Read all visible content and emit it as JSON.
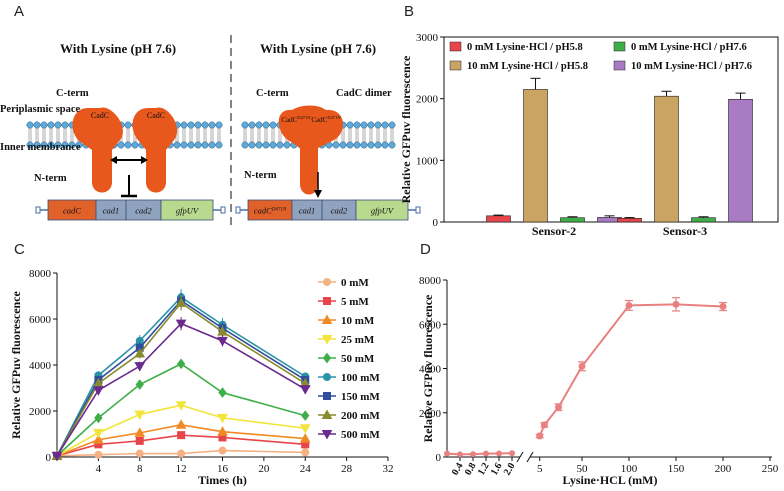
{
  "panels": {
    "A": {
      "letter": "A",
      "left_title": "With Lysine (pH 7.6)",
      "right_title": "With Lysine (pH 7.6)",
      "labels": {
        "cterm_left": "C-term",
        "cterm_right": "C-term",
        "periplasmic": "Periplasmic space",
        "inner": "Inner membrance",
        "nterm_left": "N-term",
        "nterm_right": "N-term",
        "cadc_dimer": "CadC dimer",
        "cadc1": "CadC",
        "cadc2": "CadC",
        "cadc_mut1": "CadC",
        "cadc_mut2": "CadC",
        "mut_sup": "D471N"
      },
      "left_genes": [
        "cadC",
        "cad1",
        "cad2",
        "gfpUV"
      ],
      "right_genes": [
        "cadC",
        "cad1",
        "cad2",
        "gfpUV"
      ],
      "right_gene_sup": "D471N",
      "colors": {
        "protein": "#E8581C",
        "membrane_head": "#5DA9DA",
        "gene_cadC": "#E0612A",
        "gene_cad": "#8FA2BE",
        "gene_gfp": "#B9D98E"
      }
    },
    "B": {
      "letter": "B",
      "chart_data": {
        "type": "bar",
        "ylabel": "Relative GFPuv fluorescence",
        "ylim": [
          0,
          3000
        ],
        "yticks": [
          0,
          1000,
          2000,
          3000
        ],
        "categories": [
          "Sensor-2",
          "Sensor-3"
        ],
        "series": [
          {
            "name": "0 mM Lysine·HCl / pH5.8",
            "color": "#E8454A",
            "values": [
              100,
              60
            ],
            "errors": [
              12,
              12
            ]
          },
          {
            "name": "10 mM Lysine·HCl / pH5.8",
            "color": "#C9A462",
            "values": [
              2150,
              2040
            ],
            "errors": [
              180,
              80
            ]
          },
          {
            "name": "0 mM Lysine·HCl / pH7.6",
            "color": "#3FAE49",
            "values": [
              70,
              70
            ],
            "errors": [
              15,
              15
            ]
          },
          {
            "name": "10 mM Lysine·HCl / pH7.6",
            "color": "#A97BC2",
            "values": [
              75,
              1990
            ],
            "errors": [
              25,
              100
            ]
          }
        ]
      }
    },
    "C": {
      "letter": "C",
      "chart_data": {
        "type": "line",
        "xlabel": "Times (h)",
        "ylabel": "Relative GFPuv fluorescence",
        "x": [
          0,
          4,
          8,
          12,
          16,
          24
        ],
        "xlim": [
          0,
          32
        ],
        "xticks": [
          0,
          4,
          8,
          12,
          16,
          20,
          24,
          28,
          32
        ],
        "ylim": [
          0,
          8000
        ],
        "yticks": [
          0,
          2000,
          4000,
          6000,
          8000
        ],
        "series": [
          {
            "name": "0 mM",
            "color": "#F4B183",
            "marker": "circle",
            "values": [
              50,
              100,
              150,
              150,
              280,
              200
            ]
          },
          {
            "name": "5 mM",
            "color": "#E8454A",
            "marker": "square",
            "values": [
              50,
              550,
              700,
              950,
              850,
              550
            ]
          },
          {
            "name": "10 mM",
            "color": "#F08A24",
            "marker": "triangle-up",
            "values": [
              50,
              750,
              1050,
              1400,
              1100,
              800
            ]
          },
          {
            "name": "25 mM",
            "color": "#F2E43A",
            "marker": "triangle-down",
            "values": [
              50,
              1050,
              1850,
              2250,
              1700,
              1250
            ]
          },
          {
            "name": "50 mM",
            "color": "#3FAE49",
            "marker": "diamond",
            "values": [
              50,
              1700,
              3150,
              4050,
              2800,
              1800
            ]
          },
          {
            "name": "100 mM",
            "color": "#2A93A8",
            "marker": "circle",
            "values": [
              50,
              3550,
              5050,
              6950,
              5750,
              3500
            ]
          },
          {
            "name": "150 mM",
            "color": "#2F4F9E",
            "marker": "square",
            "values": [
              50,
              3350,
              4750,
              6800,
              5600,
              3350
            ]
          },
          {
            "name": "200 mM",
            "color": "#8A8A2E",
            "marker": "triangle-up",
            "values": [
              50,
              3200,
              4500,
              6700,
              5450,
              3200
            ]
          },
          {
            "name": "500 mM",
            "color": "#6A2A8E",
            "marker": "triangle-down",
            "values": [
              50,
              2900,
              3950,
              5800,
              5050,
              2950
            ]
          }
        ]
      }
    },
    "D": {
      "letter": "D",
      "chart_data": {
        "type": "line",
        "xlabel": "Lysine·HCL (mM)",
        "ylabel": "Relative GFPuv fluorescence",
        "ylim": [
          0,
          8000
        ],
        "yticks": [
          0,
          2000,
          4000,
          6000,
          8000
        ],
        "color": "#E88080",
        "broken_axis": {
          "low_ticks": [
            "0.4",
            "0.8",
            "1.2",
            "1.6",
            "2.0"
          ],
          "high_ticks": [
            5,
            50,
            100,
            150,
            200,
            250
          ]
        },
        "low_segment": {
          "x": [
            0.0,
            0.4,
            0.8,
            1.2,
            1.6,
            2.0
          ],
          "y": [
            150,
            120,
            130,
            150,
            160,
            170
          ]
        },
        "high_segment": {
          "x": [
            5,
            10,
            25,
            50,
            100,
            150,
            200
          ],
          "y": [
            950,
            1450,
            2250,
            4100,
            6850,
            6900,
            6800
          ],
          "errors": [
            80,
            100,
            150,
            200,
            220,
            300,
            180
          ]
        }
      }
    }
  }
}
